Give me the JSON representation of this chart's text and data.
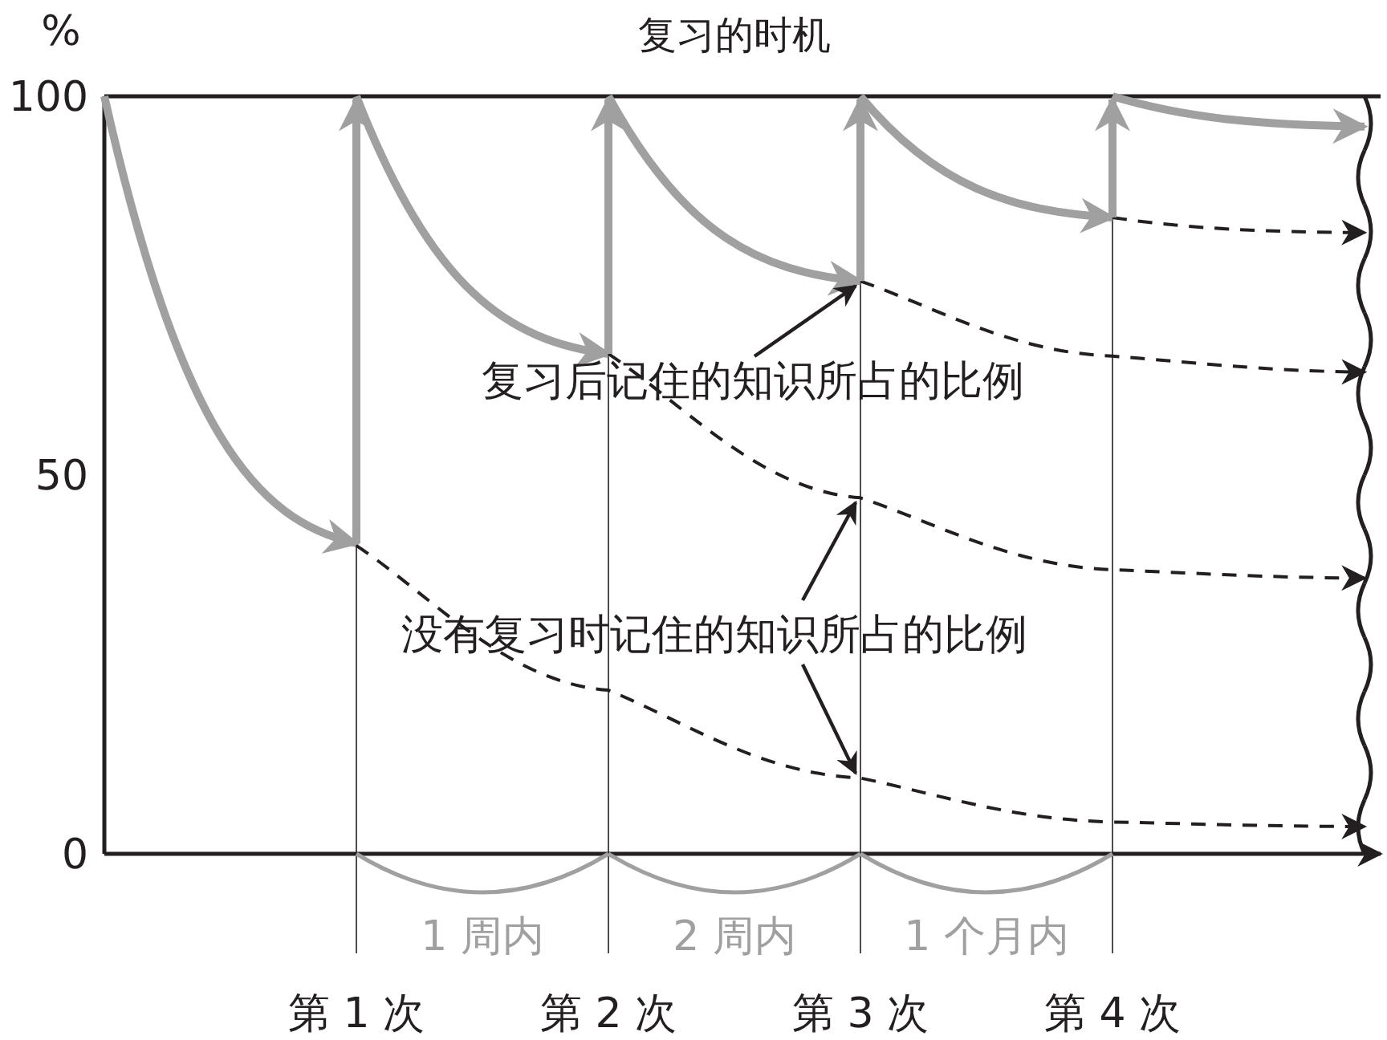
{
  "chart_data": {
    "type": "line",
    "title": "复习的时机",
    "ylabel": "%",
    "categories": [
      null,
      "第 1 次",
      "第 2 次",
      "第 3 次",
      "第 4 次",
      null
    ],
    "ylim": [
      0,
      100
    ],
    "yticks": [
      0,
      50,
      100
    ],
    "grid": "x",
    "marker": "none",
    "series": [
      {
        "color": "#a0a0a0",
        "line_style": "solid",
        "values": [
          100,
          41,
          null,
          null,
          null,
          null
        ]
      },
      {
        "color": "#a0a0a0",
        "line_style": "solid",
        "values": [
          null,
          100,
          66,
          null,
          null,
          null
        ]
      },
      {
        "color": "#a0a0a0",
        "line_style": "solid",
        "values": [
          null,
          null,
          100,
          75.6,
          null,
          null
        ]
      },
      {
        "color": "#a0a0a0",
        "line_style": "solid",
        "values": [
          null,
          null,
          null,
          100,
          84,
          null
        ]
      },
      {
        "color": "#a0a0a0",
        "line_style": "solid",
        "values": [
          null,
          null,
          null,
          null,
          100,
          96
        ]
      },
      {
        "color": "#231f20",
        "line_style": "dashed",
        "values": [
          null,
          40.7,
          21.6,
          10,
          4.2,
          3.6
        ]
      },
      {
        "color": "#231f20",
        "line_style": "dashed",
        "values": [
          null,
          null,
          66,
          47,
          37.5,
          36.4
        ]
      },
      {
        "color": "#231f20",
        "line_style": "dashed",
        "values": [
          null,
          null,
          null,
          75.6,
          65.7,
          63.6
        ]
      },
      {
        "color": "#231f20",
        "line_style": "dashed",
        "values": [
          null,
          null,
          null,
          null,
          84,
          82
        ]
      }
    ],
    "annotations": [
      {
        "text": "复习后记住的知识所占的比例",
        "x": "第 3 次",
        "y": 75.6
      },
      {
        "text": "没有复习时记住的知识所占的比例",
        "x": "第 3 次",
        "y": 47
      },
      "1 周内",
      "2 周内",
      "1 个月内"
    ]
  }
}
